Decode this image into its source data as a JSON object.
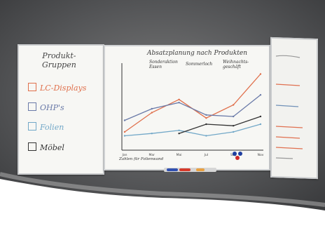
{
  "scene": {
    "description_colors": {
      "wall_dark": "#4a4c4e",
      "wall_mid": "#6b6c6d",
      "floor_white": "#ffffff"
    }
  },
  "left_panel": {
    "title_line1": "Produkt-",
    "title_line2": "Gruppen",
    "categories": [
      {
        "label": "LC-Displays",
        "color": "#e0704c",
        "icon": "box-icon"
      },
      {
        "label": "OHP's",
        "color": "#6a7aa8",
        "icon": "box-icon"
      },
      {
        "label": "Folien",
        "color": "#72a8c8",
        "icon": "box-icon"
      },
      {
        "label": "Möbel",
        "color": "#333333",
        "icon": "box-icon"
      }
    ]
  },
  "center_panel": {
    "title": "Absatzplanung nach Produkten",
    "annotations": [
      "Sonderaktion Essen",
      "Sommerloch",
      "Weihnachts-geschäft"
    ],
    "xlabel": "Zahlen für Folienwand"
  },
  "chart_data": {
    "type": "line",
    "title": "Absatzplanung nach Produkten",
    "xlabel": "Zahlen für Folienwand",
    "x": [
      "Jan",
      "Mar",
      "Mai",
      "Jul",
      "Sep",
      "Nov"
    ],
    "series": [
      {
        "color": "#e0704c",
        "values": [
          20,
          45,
          62,
          38,
          55,
          95
        ]
      },
      {
        "color": "#6a7aa8",
        "values": [
          35,
          50,
          58,
          42,
          40,
          68
        ]
      },
      {
        "color": "#72a8c8",
        "values": [
          15,
          18,
          22,
          15,
          20,
          30
        ]
      },
      {
        "color": "#333333",
        "values": [
          null,
          null,
          18,
          30,
          28,
          40
        ]
      }
    ],
    "ylim": [
      0,
      100
    ]
  }
}
